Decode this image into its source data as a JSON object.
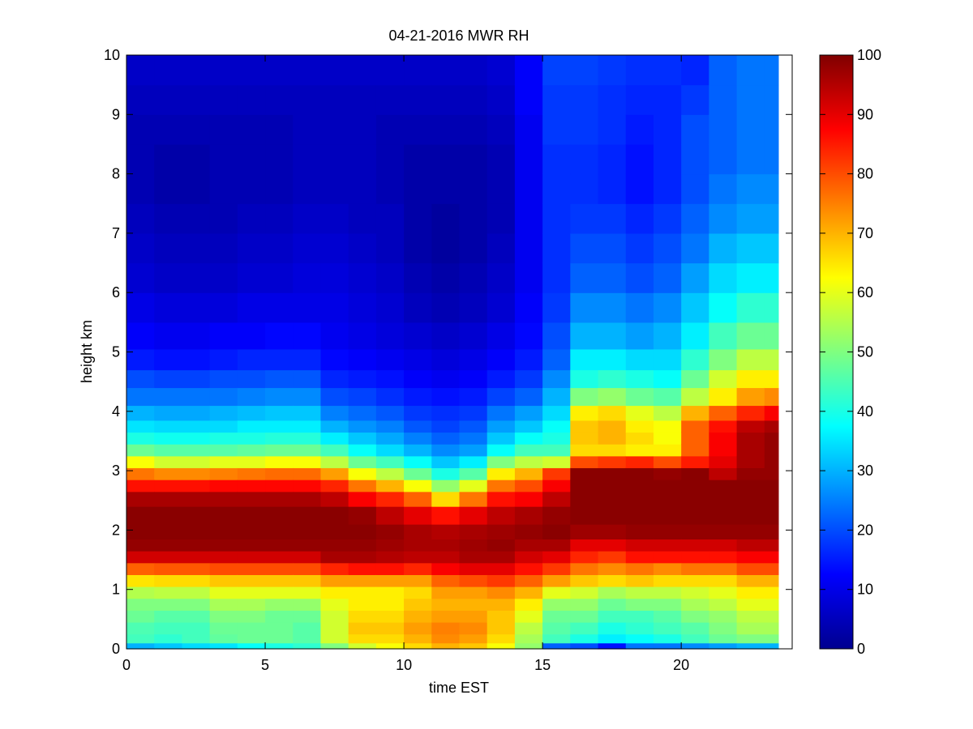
{
  "chart_data": {
    "type": "heatmap",
    "title": "04-21-2016 MWR RH",
    "xlabel": "time EST",
    "ylabel": "height km",
    "xlim": [
      0,
      24
    ],
    "ylim": [
      0,
      10
    ],
    "xticks": [
      "0",
      "5",
      "10",
      "15",
      "20"
    ],
    "yticks": [
      "0",
      "1",
      "2",
      "3",
      "4",
      "5",
      "6",
      "7",
      "8",
      "9",
      "10"
    ],
    "colorbar": {
      "colormap": "jet",
      "range": [
        0,
        100
      ],
      "ticks": [
        "0",
        "10",
        "20",
        "30",
        "40",
        "50",
        "60",
        "70",
        "80",
        "90",
        "100"
      ]
    },
    "time_hours": [
      0,
      1,
      2,
      3,
      4,
      5,
      6,
      7,
      8,
      9,
      10,
      11,
      12,
      13,
      14,
      15,
      16,
      17,
      18,
      19,
      20,
      21,
      22,
      23
    ],
    "height_km": [
      0.05,
      0.15,
      0.35,
      0.55,
      0.75,
      0.95,
      1.15,
      1.35,
      1.55,
      1.75,
      1.95,
      2.25,
      2.55,
      2.75,
      2.95,
      3.15,
      3.35,
      3.55,
      3.75,
      3.95,
      4.25,
      4.55,
      4.85,
      5.25,
      5.75,
      6.25,
      6.75,
      7.25,
      7.75,
      8.25,
      8.75,
      9.25,
      9.75
    ],
    "rh_profiles": [
      [
        30,
        44,
        45,
        48,
        50,
        55,
        65,
        78,
        92,
        98,
        99,
        99,
        96,
        86,
        76,
        62,
        48,
        40,
        35,
        30,
        24,
        20,
        15,
        12,
        10,
        8,
        7,
        6,
        5,
        5,
        5,
        6,
        7
      ],
      [
        32,
        42,
        44,
        46,
        50,
        56,
        66,
        79,
        92,
        98,
        99,
        99,
        96,
        86,
        74,
        58,
        46,
        39,
        34,
        29,
        24,
        19,
        14,
        11,
        9,
        7,
        6,
        5,
        4,
        4,
        5,
        6,
        7
      ],
      [
        34,
        44,
        44,
        46,
        50,
        56,
        66,
        79,
        92,
        98,
        99,
        99,
        96,
        86,
        74,
        58,
        46,
        39,
        34,
        29,
        24,
        19,
        14,
        11,
        9,
        7,
        6,
        5,
        4,
        4,
        5,
        6,
        7
      ],
      [
        35,
        47,
        48,
        50,
        54,
        60,
        68,
        80,
        92,
        98,
        99,
        99,
        96,
        87,
        75,
        60,
        46,
        40,
        34,
        30,
        24,
        20,
        15,
        12,
        9,
        7,
        6,
        5,
        5,
        5,
        5,
        6,
        7
      ],
      [
        38,
        48,
        48,
        50,
        54,
        60,
        68,
        80,
        92,
        98,
        99,
        99,
        96,
        87,
        76,
        60,
        47,
        40,
        36,
        31,
        25,
        20,
        16,
        12,
        10,
        8,
        7,
        6,
        5,
        5,
        5,
        6,
        7
      ],
      [
        40,
        48,
        48,
        48,
        52,
        60,
        68,
        80,
        92,
        98,
        99,
        99,
        96,
        87,
        77,
        62,
        48,
        41,
        36,
        32,
        26,
        21,
        16,
        13,
        10,
        8,
        7,
        6,
        5,
        5,
        5,
        6,
        7
      ],
      [
        42,
        46,
        46,
        48,
        52,
        60,
        68,
        80,
        92,
        98,
        99,
        99,
        96,
        87,
        77,
        62,
        48,
        41,
        36,
        32,
        26,
        21,
        16,
        13,
        10,
        9,
        8,
        7,
        6,
        6,
        6,
        6,
        7
      ],
      [
        50,
        58,
        58,
        58,
        60,
        64,
        72,
        84,
        96,
        98,
        99,
        99,
        94,
        84,
        72,
        56,
        44,
        36,
        30,
        25,
        20,
        16,
        13,
        11,
        10,
        9,
        8,
        7,
        6,
        6,
        6,
        6,
        7
      ],
      [
        58,
        66,
        68,
        66,
        64,
        64,
        72,
        86,
        96,
        98,
        99,
        98,
        88,
        76,
        62,
        48,
        38,
        32,
        27,
        23,
        19,
        15,
        12,
        10,
        9,
        8,
        7,
        6,
        6,
        6,
        6,
        6,
        7
      ],
      [
        62,
        66,
        68,
        66,
        64,
        64,
        72,
        86,
        95,
        97,
        98,
        94,
        84,
        70,
        56,
        44,
        34,
        29,
        25,
        21,
        17,
        14,
        11,
        9,
        8,
        7,
        6,
        6,
        5,
        5,
        5,
        6,
        7
      ],
      [
        66,
        70,
        72,
        70,
        68,
        66,
        72,
        84,
        94,
        96,
        96,
        90,
        78,
        62,
        48,
        38,
        30,
        25,
        21,
        18,
        15,
        12,
        10,
        8,
        6,
        5,
        4,
        4,
        4,
        4,
        5,
        6,
        7
      ],
      [
        70,
        74,
        75,
        72,
        70,
        72,
        78,
        88,
        94,
        96,
        95,
        86,
        66,
        52,
        40,
        32,
        26,
        22,
        19,
        17,
        14,
        11,
        9,
        7,
        5,
        4,
        3,
        3,
        4,
        4,
        5,
        6,
        7
      ],
      [
        68,
        72,
        74,
        72,
        70,
        72,
        80,
        90,
        96,
        97,
        96,
        90,
        76,
        60,
        46,
        36,
        28,
        24,
        21,
        18,
        15,
        12,
        10,
        8,
        6,
        5,
        4,
        4,
        4,
        4,
        5,
        6,
        7
      ],
      [
        62,
        66,
        68,
        68,
        70,
        74,
        82,
        90,
        96,
        98,
        97,
        94,
        86,
        76,
        64,
        50,
        38,
        32,
        28,
        24,
        19,
        15,
        12,
        10,
        8,
        7,
        6,
        5,
        5,
        5,
        6,
        7,
        8
      ],
      [
        52,
        54,
        56,
        60,
        64,
        70,
        78,
        86,
        92,
        96,
        98,
        96,
        88,
        80,
        70,
        56,
        44,
        38,
        32,
        28,
        22,
        18,
        15,
        13,
        12,
        11,
        11,
        11,
        11,
        11,
        11,
        12,
        12
      ],
      [
        22,
        44,
        46,
        48,
        52,
        60,
        72,
        82,
        90,
        96,
        99,
        98,
        94,
        88,
        82,
        58,
        44,
        40,
        38,
        34,
        30,
        26,
        22,
        20,
        18,
        17,
        17,
        17,
        17,
        17,
        18,
        18,
        19
      ],
      [
        20,
        40,
        44,
        48,
        52,
        58,
        68,
        76,
        84,
        90,
        97,
        99,
        99,
        99,
        99,
        80,
        66,
        68,
        68,
        64,
        50,
        40,
        36,
        30,
        26,
        22,
        20,
        18,
        17,
        17,
        18,
        18,
        19
      ],
      [
        14,
        36,
        40,
        44,
        48,
        54,
        66,
        74,
        82,
        90,
        97,
        99,
        99,
        99,
        99,
        82,
        66,
        70,
        70,
        66,
        52,
        42,
        36,
        30,
        26,
        22,
        20,
        18,
        16,
        16,
        17,
        17,
        18
      ],
      [
        24,
        38,
        42,
        44,
        50,
        56,
        68,
        76,
        86,
        92,
        98,
        99,
        99,
        99,
        99,
        84,
        64,
        66,
        64,
        60,
        48,
        40,
        34,
        28,
        24,
        20,
        18,
        16,
        14,
        14,
        15,
        16,
        17
      ],
      [
        24,
        40,
        44,
        46,
        50,
        56,
        66,
        74,
        86,
        92,
        98,
        99,
        99,
        99,
        98,
        80,
        64,
        62,
        62,
        56,
        46,
        38,
        34,
        30,
        26,
        22,
        20,
        18,
        16,
        16,
        16,
        16,
        17
      ],
      [
        26,
        44,
        46,
        50,
        54,
        58,
        66,
        76,
        86,
        92,
        98,
        99,
        99,
        99,
        99,
        85,
        78,
        78,
        78,
        70,
        56,
        48,
        42,
        36,
        32,
        28,
        24,
        22,
        20,
        20,
        20,
        18,
        16
      ],
      [
        28,
        48,
        50,
        52,
        56,
        60,
        66,
        76,
        86,
        92,
        98,
        99,
        99,
        99,
        94,
        90,
        88,
        88,
        86,
        78,
        64,
        58,
        50,
        44,
        38,
        34,
        30,
        26,
        24,
        22,
        22,
        22,
        22
      ],
      [
        30,
        50,
        54,
        56,
        60,
        64,
        70,
        80,
        88,
        94,
        98,
        99,
        99,
        99,
        98,
        96,
        96,
        96,
        94,
        84,
        72,
        64,
        56,
        48,
        42,
        36,
        32,
        28,
        26,
        24,
        24,
        24,
        24
      ],
      [
        30,
        50,
        54,
        56,
        60,
        64,
        70,
        80,
        88,
        94,
        98,
        99,
        99,
        99,
        98,
        98,
        98,
        98,
        96,
        88,
        74,
        64,
        56,
        48,
        42,
        36,
        32,
        28,
        26,
        24,
        24,
        24,
        24
      ]
    ]
  }
}
